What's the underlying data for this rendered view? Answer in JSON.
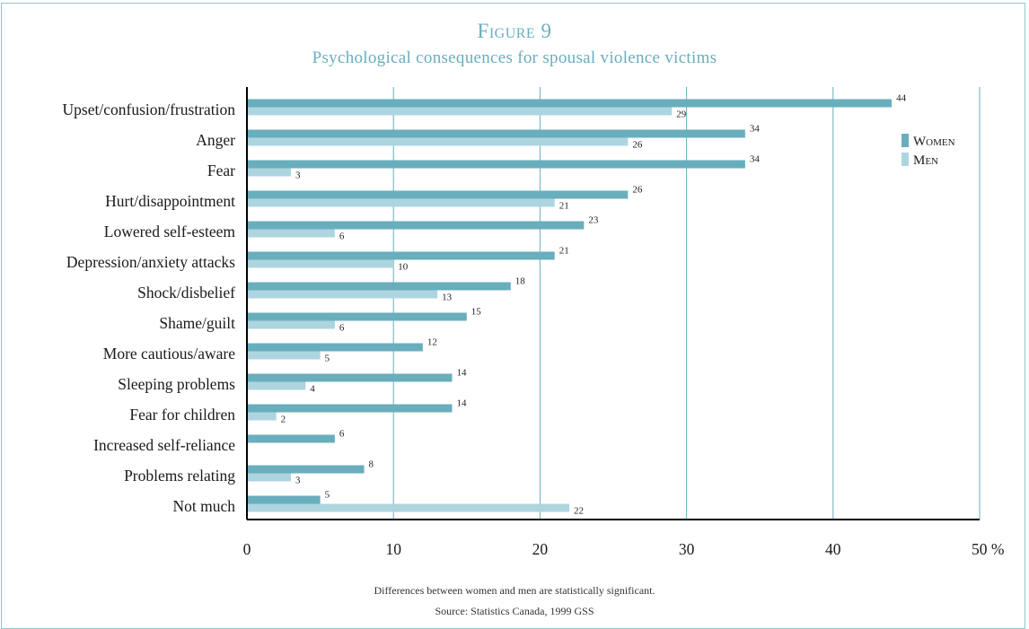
{
  "figure": {
    "title": "Figure 9",
    "subtitle": "Psychological consequences for spousal violence victims"
  },
  "notes": {
    "significance": "Differences between women and men are statistically significant.",
    "source": "Source: Statistics Canada, 1999 GSS"
  },
  "chart_data": {
    "type": "bar",
    "orientation": "horizontal",
    "categories": [
      "Upset/confusion/frustration",
      "Anger",
      "Fear",
      "Hurt/disappointment",
      "Lowered self-esteem",
      "Depression/anxiety attacks",
      "Shock/disbelief",
      "Shame/guilt",
      "More cautious/aware",
      "Sleeping problems",
      "Fear for children",
      "Increased self-reliance",
      "Problems relating",
      "Not much"
    ],
    "series": [
      {
        "name": "Women",
        "color": "#69aebd",
        "values": [
          44,
          34,
          34,
          26,
          23,
          21,
          18,
          15,
          12,
          14,
          14,
          6,
          8,
          5
        ]
      },
      {
        "name": "Men",
        "color": "#add5e0",
        "values": [
          29,
          26,
          3,
          21,
          6,
          10,
          13,
          6,
          5,
          4,
          2,
          null,
          3,
          22
        ]
      }
    ],
    "xlim": [
      0,
      50
    ],
    "xticks": [
      "0",
      "10",
      "20",
      "30",
      "40",
      "50 %"
    ],
    "grid": true,
    "legend_position": "top-right"
  }
}
